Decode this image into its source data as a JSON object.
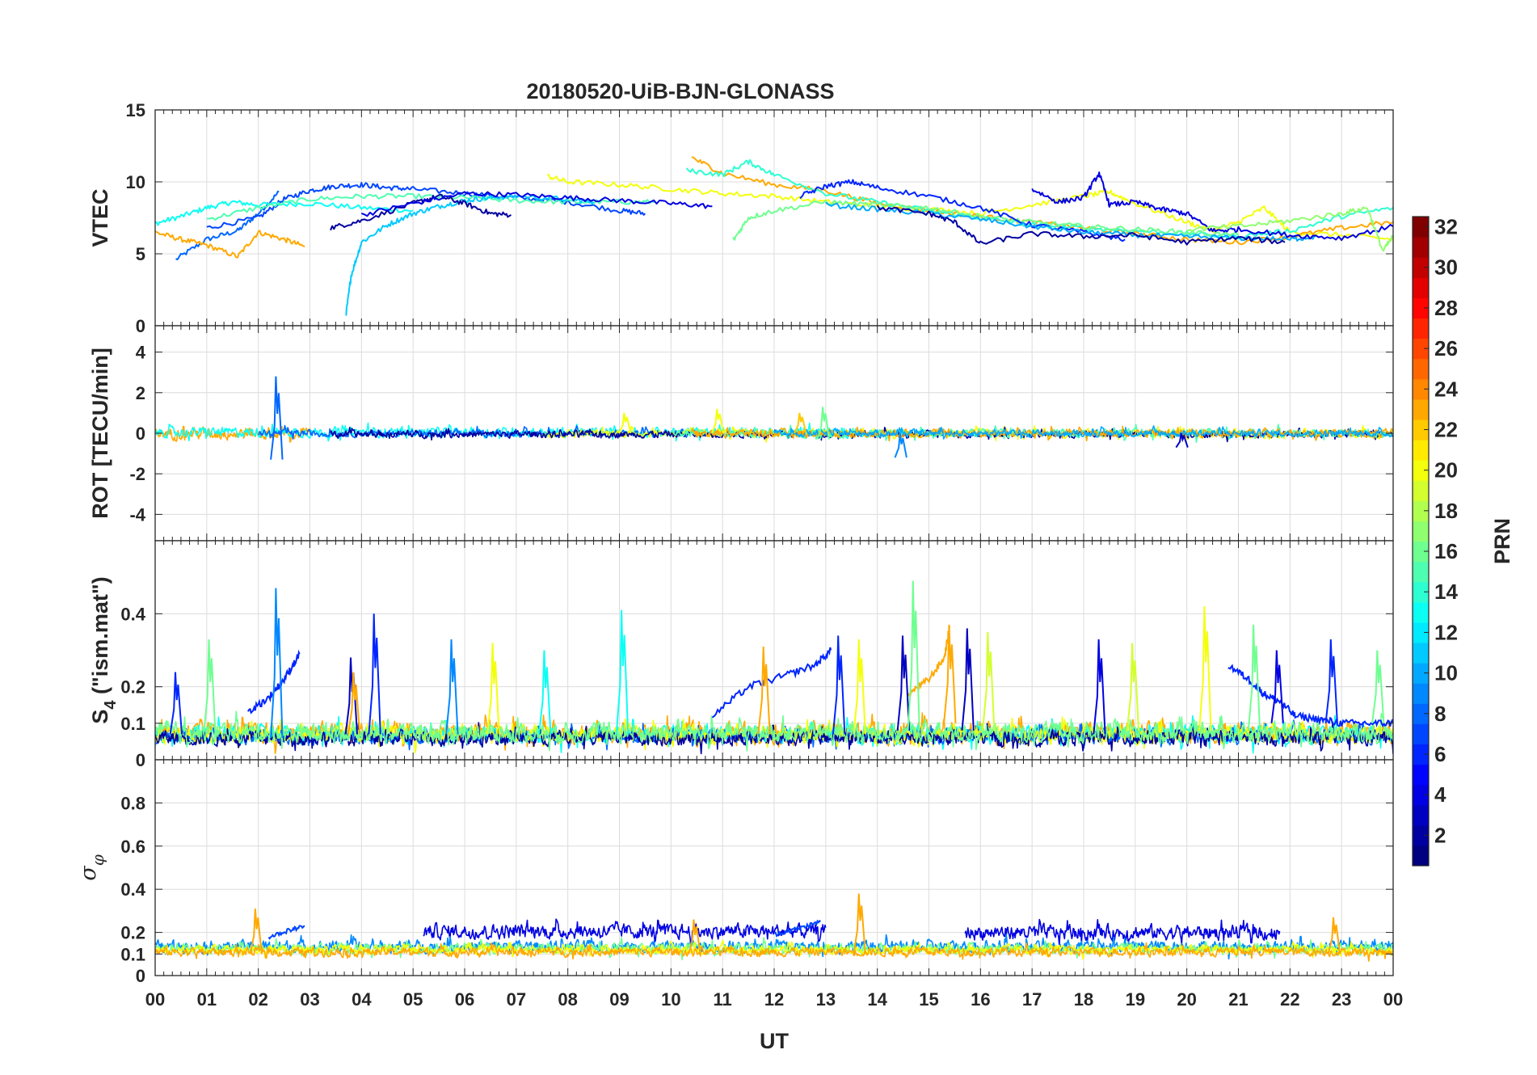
{
  "title": "20180520-UiB-BJN-GLONASS",
  "xlabel": "UT",
  "x_tick_labels": [
    "00",
    "01",
    "02",
    "03",
    "04",
    "05",
    "06",
    "07",
    "08",
    "09",
    "10",
    "11",
    "12",
    "13",
    "14",
    "15",
    "16",
    "17",
    "18",
    "19",
    "20",
    "21",
    "22",
    "23",
    "00"
  ],
  "colorbar": {
    "label": "PRN",
    "range": [
      1,
      32
    ],
    "tick_labels": [
      "2",
      "4",
      "6",
      "8",
      "10",
      "12",
      "14",
      "16",
      "18",
      "20",
      "22",
      "24",
      "26",
      "28",
      "30",
      "32"
    ]
  },
  "chart_data": [
    {
      "type": "line",
      "name": "vtec",
      "ylabel": "VTEC",
      "xlim": [
        0,
        24
      ],
      "ylim": [
        0,
        15
      ],
      "yticks": [
        "0",
        "5",
        "10",
        "15"
      ],
      "grid": true,
      "series": [
        {
          "prn": 8,
          "x": [
            0.4,
            1.0,
            1.6,
            2.0,
            2.4
          ],
          "y": [
            4.6,
            6.0,
            6.6,
            7.8,
            9.3
          ]
        },
        {
          "prn": 13,
          "x": [
            0.0,
            0.5,
            1.0,
            1.5,
            2.0,
            3.0,
            4.0,
            5.0
          ],
          "y": [
            7.1,
            7.6,
            8.2,
            8.6,
            8.4,
            8.5,
            8.2,
            8.0
          ]
        },
        {
          "prn": 23,
          "x": [
            0.0,
            0.5,
            1.0,
            1.6,
            2.0,
            2.5,
            2.9
          ],
          "y": [
            6.5,
            6.0,
            5.6,
            4.8,
            6.5,
            6.0,
            5.5
          ]
        },
        {
          "prn": 7,
          "x": [
            1.0,
            2.0,
            2.5,
            3.0,
            3.5,
            4.0,
            4.5,
            5.0,
            6.0,
            7.0,
            8.0,
            9.0,
            9.5
          ],
          "y": [
            6.8,
            7.5,
            8.8,
            9.4,
            9.7,
            9.8,
            9.6,
            9.5,
            9.2,
            8.9,
            8.6,
            8.0,
            7.8
          ]
        },
        {
          "prn": 15,
          "x": [
            1.0,
            2.0,
            3.0,
            4.0,
            5.0,
            6.0,
            7.0,
            8.0,
            9.0,
            9.7
          ],
          "y": [
            7.4,
            8.2,
            8.8,
            9.0,
            9.0,
            8.9,
            8.7,
            8.6,
            8.6,
            8.6
          ]
        },
        {
          "prn": 11,
          "x": [
            3.7,
            3.8,
            4.0,
            4.5,
            5.0,
            5.5,
            6.0,
            6.5,
            7.0,
            8.0,
            8.5
          ],
          "y": [
            0.8,
            3.5,
            5.8,
            7.0,
            7.8,
            8.3,
            8.7,
            8.9,
            9.0,
            8.8,
            8.6
          ]
        },
        {
          "prn": 2,
          "x": [
            3.4,
            4.0,
            5.0,
            5.5,
            6.0,
            6.5,
            6.9
          ],
          "y": [
            6.8,
            7.3,
            8.5,
            9.0,
            8.5,
            7.8,
            7.7
          ]
        },
        {
          "prn": 4,
          "x": [
            4.0,
            5.0,
            6.0,
            7.0,
            8.0,
            9.0,
            10.0,
            10.8
          ],
          "y": [
            7.7,
            8.5,
            9.2,
            9.1,
            8.9,
            8.7,
            8.5,
            8.3
          ]
        },
        {
          "prn": 20,
          "x": [
            7.6,
            8.0,
            9.0,
            10.0,
            11.0,
            12.0,
            13.0,
            14.0,
            15.0,
            16.0,
            17.0,
            18.0,
            18.5,
            19.0,
            20.0,
            20.5,
            21.0,
            21.5,
            22.0,
            23.0,
            24.0
          ],
          "y": [
            10.4,
            10.0,
            9.8,
            9.5,
            9.2,
            9.0,
            8.6,
            8.3,
            8.1,
            7.8,
            8.4,
            9.0,
            9.3,
            8.5,
            7.2,
            6.6,
            7.2,
            8.2,
            6.5,
            6.3,
            6.0
          ]
        },
        {
          "prn": 23,
          "x": [
            10.4,
            11.0,
            12.0,
            13.0,
            14.0,
            15.0,
            16.0,
            17.0,
            18.0,
            19.0,
            20.0,
            21.0,
            22.0,
            23.0,
            24.0
          ],
          "y": [
            11.7,
            10.6,
            9.8,
            9.4,
            8.5,
            8.0,
            7.6,
            7.2,
            6.8,
            6.4,
            6.0,
            5.8,
            6.2,
            6.8,
            7.2
          ]
        },
        {
          "prn": 14,
          "x": [
            10.3,
            11.0,
            11.5,
            12.0,
            13.0,
            14.0,
            15.0,
            16.0,
            17.0,
            18.0,
            19.0,
            20.0,
            21.0,
            22.0,
            23.0,
            24.0
          ],
          "y": [
            10.8,
            10.5,
            11.4,
            10.5,
            9.2,
            8.6,
            8.0,
            7.5,
            7.0,
            6.8,
            6.6,
            6.4,
            6.2,
            6.6,
            7.6,
            8.2
          ]
        },
        {
          "prn": 16,
          "x": [
            11.2,
            11.5,
            12.0,
            13.0,
            14.0,
            15.0,
            16.0,
            17.0,
            18.0,
            19.0,
            20.0,
            21.0
          ],
          "y": [
            5.9,
            7.5,
            8.0,
            8.6,
            8.4,
            8.2,
            7.6,
            7.2,
            6.9,
            6.7,
            6.5,
            6.3
          ]
        },
        {
          "prn": 6,
          "x": [
            12.5,
            13.0,
            13.5,
            14.0,
            15.0,
            16.0,
            17.0,
            18.0,
            18.8
          ],
          "y": [
            9.0,
            9.7,
            10.0,
            9.6,
            9.0,
            8.2,
            7.0,
            6.5,
            6.0
          ]
        },
        {
          "prn": 10,
          "x": [
            13.0,
            14.0,
            15.0,
            16.0,
            17.0,
            18.0,
            19.0,
            20.0,
            21.0,
            22.0,
            22.5
          ],
          "y": [
            8.4,
            8.1,
            7.8,
            7.4,
            6.9,
            6.5,
            6.3,
            6.2,
            6.1,
            6.0,
            6.2
          ]
        },
        {
          "prn": 2,
          "x": [
            14.0,
            15.0,
            15.5,
            16.0,
            17.0,
            18.0,
            19.0,
            20.0,
            21.0,
            21.9
          ],
          "y": [
            8.2,
            7.8,
            7.2,
            5.7,
            6.4,
            6.2,
            6.3,
            5.8,
            6.1,
            5.8
          ]
        },
        {
          "prn": 4,
          "x": [
            17.0,
            17.5,
            18.0,
            18.3,
            18.5,
            19.0,
            19.5,
            20.0,
            20.5,
            21.0,
            22.0,
            23.0,
            24.0
          ],
          "y": [
            9.5,
            8.6,
            8.9,
            10.6,
            8.4,
            8.6,
            8.1,
            7.8,
            6.6,
            6.7,
            6.3,
            6.1,
            6.9
          ]
        },
        {
          "prn": 17,
          "x": [
            20.0,
            21.0,
            22.0,
            23.0,
            23.5,
            23.8,
            24.0
          ],
          "y": [
            6.7,
            6.9,
            7.3,
            7.8,
            8.2,
            5.2,
            6.2
          ]
        }
      ]
    },
    {
      "type": "line",
      "name": "rot",
      "ylabel": "ROT [TECU/min]",
      "xlim": [
        0,
        24
      ],
      "ylim": [
        -5.3,
        5.3
      ],
      "yticks": [
        "-4",
        "-2",
        "0",
        "2",
        "4"
      ],
      "grid": true,
      "noise_bands": [
        {
          "prn": 23,
          "x": [
            0,
            3
          ],
          "center": 0.0,
          "amplitude": 0.45
        },
        {
          "prn": 13,
          "x": [
            0,
            13.5
          ],
          "center": 0.05,
          "amplitude": 0.35
        },
        {
          "prn": 8,
          "x": [
            2,
            10.8
          ],
          "center": 0.0,
          "amplitude": 0.25
        },
        {
          "prn": 20,
          "x": [
            7.5,
            24
          ],
          "center": 0.0,
          "amplitude": 0.3
        },
        {
          "prn": 2,
          "x": [
            3.4,
            24
          ],
          "center": -0.05,
          "amplitude": 0.25
        },
        {
          "prn": 15,
          "x": [
            10,
            24
          ],
          "center": 0.0,
          "amplitude": 0.3
        },
        {
          "prn": 23,
          "x": [
            10.4,
            24
          ],
          "center": 0.0,
          "amplitude": 0.3
        },
        {
          "prn": 10,
          "x": [
            12,
            24
          ],
          "center": 0.0,
          "amplitude": 0.25
        }
      ],
      "spikes": [
        {
          "prn": 8,
          "x": 2.35,
          "y": [
            -1.3,
            2.8
          ]
        },
        {
          "prn": 20,
          "x": 9.1,
          "y": [
            0,
            1.0
          ]
        },
        {
          "prn": 20,
          "x": 10.9,
          "y": [
            0,
            1.2
          ]
        },
        {
          "prn": 22,
          "x": 12.5,
          "y": [
            0,
            1.0
          ]
        },
        {
          "prn": 16,
          "x": 12.95,
          "y": [
            -0.3,
            1.3
          ]
        },
        {
          "prn": 9,
          "x": 14.45,
          "y": [
            -1.2,
            0
          ]
        },
        {
          "prn": 3,
          "x": 19.9,
          "y": [
            -0.7,
            0
          ]
        }
      ]
    },
    {
      "type": "line",
      "name": "s4",
      "ylabel": "S4 (\"ism.mat\")",
      "ylabel_main": "S",
      "ylabel_sub": "4",
      "ylabel_rest": " (\"ism.mat\")",
      "xlim": [
        0,
        24
      ],
      "ylim": [
        0,
        0.6
      ],
      "yticks": [
        "0",
        "0.1",
        "0.2",
        "0.4"
      ],
      "grid": true,
      "noise_bands": [
        {
          "prn": 23,
          "x": [
            0,
            24
          ],
          "center": 0.075,
          "amplitude": 0.04
        },
        {
          "prn": 13,
          "x": [
            0,
            24
          ],
          "center": 0.07,
          "amplitude": 0.035
        },
        {
          "prn": 8,
          "x": [
            0,
            24
          ],
          "center": 0.065,
          "amplitude": 0.03
        },
        {
          "prn": 20,
          "x": [
            0,
            24
          ],
          "center": 0.07,
          "amplitude": 0.035
        },
        {
          "prn": 2,
          "x": [
            0,
            24
          ],
          "center": 0.06,
          "amplitude": 0.03
        },
        {
          "prn": 16,
          "x": [
            0,
            24
          ],
          "center": 0.075,
          "amplitude": 0.04
        }
      ],
      "spikes": [
        {
          "prn": 6,
          "x": 0.4,
          "y": [
            0.07,
            0.24
          ]
        },
        {
          "prn": 16,
          "x": 1.05,
          "y": [
            0.07,
            0.33
          ]
        },
        {
          "prn": 9,
          "x": 2.35,
          "y": [
            0.06,
            0.47
          ]
        },
        {
          "prn": 3,
          "x": 3.8,
          "y": [
            0.07,
            0.28
          ]
        },
        {
          "prn": 6,
          "x": 4.25,
          "y": [
            0.07,
            0.4
          ]
        },
        {
          "prn": 23,
          "x": 3.85,
          "y": [
            0.07,
            0.24
          ]
        },
        {
          "prn": 9,
          "x": 5.75,
          "y": [
            0.07,
            0.33
          ]
        },
        {
          "prn": 20,
          "x": 6.55,
          "y": [
            0.07,
            0.32
          ]
        },
        {
          "prn": 13,
          "x": 7.55,
          "y": [
            0.07,
            0.3
          ]
        },
        {
          "prn": 13,
          "x": 9.05,
          "y": [
            0.07,
            0.41
          ]
        },
        {
          "prn": 23,
          "x": 11.8,
          "y": [
            0.07,
            0.31
          ]
        },
        {
          "prn": 6,
          "x": 13.25,
          "y": [
            0.07,
            0.34
          ]
        },
        {
          "prn": 20,
          "x": 13.65,
          "y": [
            0.07,
            0.33
          ]
        },
        {
          "prn": 3,
          "x": 14.5,
          "y": [
            0.08,
            0.34
          ]
        },
        {
          "prn": 16,
          "x": 14.7,
          "y": [
            0.08,
            0.49
          ]
        },
        {
          "prn": 23,
          "x": 15.4,
          "y": [
            0.1,
            0.37
          ]
        },
        {
          "prn": 3,
          "x": 15.75,
          "y": [
            0.08,
            0.36
          ]
        },
        {
          "prn": 19,
          "x": 16.15,
          "y": [
            0.08,
            0.35
          ]
        },
        {
          "prn": 4,
          "x": 18.3,
          "y": [
            0.07,
            0.33
          ]
        },
        {
          "prn": 19,
          "x": 18.95,
          "y": [
            0.08,
            0.32
          ]
        },
        {
          "prn": 20,
          "x": 20.35,
          "y": [
            0.08,
            0.42
          ]
        },
        {
          "prn": 16,
          "x": 21.3,
          "y": [
            0.08,
            0.37
          ]
        },
        {
          "prn": 4,
          "x": 21.75,
          "y": [
            0.1,
            0.3
          ]
        },
        {
          "prn": 6,
          "x": 22.8,
          "y": [
            0.1,
            0.33
          ]
        },
        {
          "prn": 16,
          "x": 23.7,
          "y": [
            0.1,
            0.3
          ]
        }
      ],
      "arcs": [
        {
          "prn": 6,
          "x": [
            1.8,
            2.2,
            2.5,
            2.8
          ],
          "y": [
            0.13,
            0.17,
            0.22,
            0.29
          ]
        },
        {
          "prn": 6,
          "x": [
            10.8,
            11.5,
            12.2,
            12.8,
            13.1
          ],
          "y": [
            0.12,
            0.2,
            0.23,
            0.26,
            0.3
          ]
        },
        {
          "prn": 23,
          "x": [
            14.6,
            15.0,
            15.3,
            15.4
          ],
          "y": [
            0.18,
            0.22,
            0.28,
            0.36
          ]
        },
        {
          "prn": 6,
          "x": [
            20.8,
            21.2,
            21.5,
            21.8,
            22.1,
            22.6,
            23.0,
            23.6,
            24.0
          ],
          "y": [
            0.26,
            0.22,
            0.18,
            0.16,
            0.12,
            0.11,
            0.1,
            0.1,
            0.1
          ]
        }
      ]
    },
    {
      "type": "line",
      "name": "sigma_phi",
      "ylabel": "σφ",
      "ylabel_main": "σ",
      "ylabel_sub": "φ",
      "xlim": [
        0,
        24
      ],
      "ylim": [
        0,
        1
      ],
      "yticks": [
        "0",
        "0.1",
        "0.2",
        "0.4",
        "0.6",
        "0.8"
      ],
      "grid": true,
      "noise_bands": [
        {
          "prn": 4,
          "x": [
            5.2,
            13.0
          ],
          "center": 0.205,
          "amplitude": 0.05
        },
        {
          "prn": 4,
          "x": [
            15.7,
            21.8
          ],
          "center": 0.2,
          "amplitude": 0.05
        },
        {
          "prn": 9,
          "x": [
            0,
            24
          ],
          "center": 0.135,
          "amplitude": 0.04
        },
        {
          "prn": 16,
          "x": [
            0,
            24
          ],
          "center": 0.125,
          "amplitude": 0.035
        },
        {
          "prn": 20,
          "x": [
            0,
            24
          ],
          "center": 0.12,
          "amplitude": 0.03
        },
        {
          "prn": 23,
          "x": [
            0,
            24
          ],
          "center": 0.11,
          "amplitude": 0.03
        }
      ],
      "spikes": [
        {
          "prn": 23,
          "x": 1.95,
          "y": [
            0.1,
            0.31
          ]
        },
        {
          "prn": 23,
          "x": 10.45,
          "y": [
            0.1,
            0.26
          ]
        },
        {
          "prn": 23,
          "x": 13.65,
          "y": [
            0.1,
            0.38
          ]
        },
        {
          "prn": 23,
          "x": 22.85,
          "y": [
            0.1,
            0.27
          ]
        }
      ],
      "arcs": [
        {
          "prn": 7,
          "x": [
            2.2,
            2.6,
            2.9
          ],
          "y": [
            0.18,
            0.21,
            0.23
          ]
        },
        {
          "prn": 7,
          "x": [
            12.0,
            12.5,
            12.9
          ],
          "y": [
            0.19,
            0.22,
            0.25
          ]
        }
      ]
    }
  ]
}
